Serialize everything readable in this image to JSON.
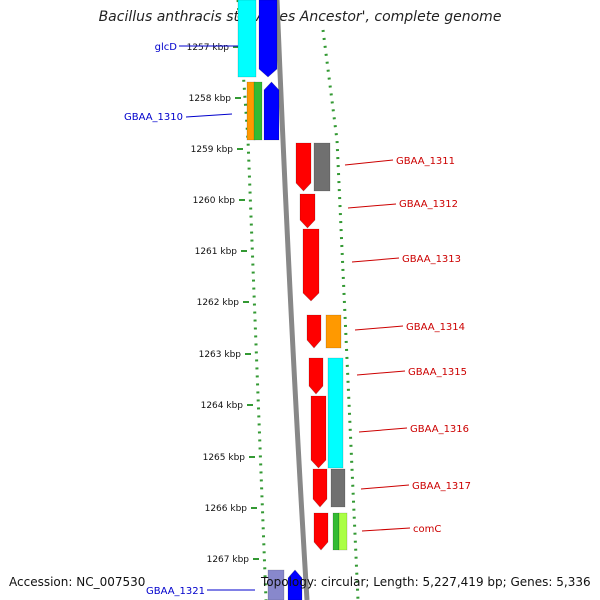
{
  "title": "Bacillus anthracis str. 'Ames Ancestor', complete genome",
  "footer": {
    "accession": "Accession: NC_007530",
    "topology": "Topology: circular; Length: 5,227,419 bp; Genes: 5,336"
  },
  "colors": {
    "red": "#ff0000",
    "blue": "#0000ff",
    "cyan": "#00ffff",
    "gray": "#707070",
    "orange": "#ff9900",
    "green": "#33bb33",
    "lime": "#aaff44",
    "feature_label_blue": "#0000cc",
    "feature_label_red": "#cc0000",
    "ruler_dots": "#339933"
  },
  "ticks": [
    "1257 kbp",
    "1258 kbp",
    "1259 kbp",
    "1260 kbp",
    "1261 kbp",
    "1262 kbp",
    "1263 kbp",
    "1264 kbp",
    "1265 kbp",
    "1266 kbp",
    "1267 kbp"
  ],
  "labels": [
    {
      "text": "glcD",
      "color": "blue"
    },
    {
      "text": "GBAA_1310",
      "color": "blue"
    },
    {
      "text": "GBAA_1311",
      "color": "red"
    },
    {
      "text": "GBAA_1312",
      "color": "red"
    },
    {
      "text": "GBAA_1313",
      "color": "red"
    },
    {
      "text": "GBAA_1314",
      "color": "red"
    },
    {
      "text": "GBAA_1315",
      "color": "red"
    },
    {
      "text": "GBAA_1316",
      "color": "red"
    },
    {
      "text": "GBAA_1317",
      "color": "red"
    },
    {
      "text": "comC",
      "color": "red"
    },
    {
      "text": "GBAA_1321",
      "color": "blue"
    }
  ]
}
